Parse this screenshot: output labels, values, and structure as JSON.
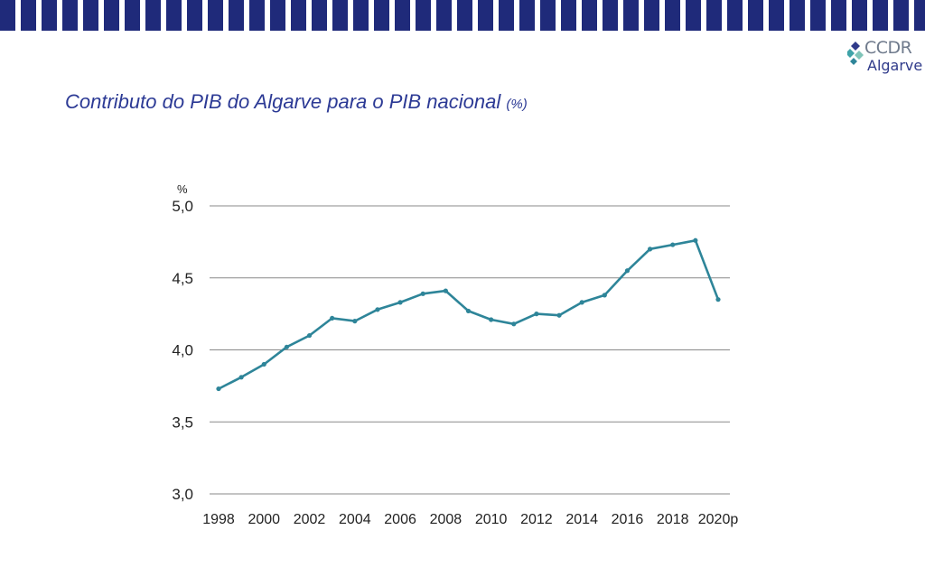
{
  "header": {
    "logo_line1": "CCDR",
    "logo_line2": "Algarve",
    "title": "Contributo do PIB do Algarve para o PIB nacional",
    "title_unit": "(%)"
  },
  "colors": {
    "band": "#1f2a7a",
    "title": "#2c3a95",
    "series": "#2e8599",
    "grid": "#8a8a8a"
  },
  "chart_data": {
    "type": "line",
    "title": "Contributo do PIB do Algarve para o PIB nacional (%)",
    "ylabel": "%",
    "xlabel": "",
    "ylim": [
      3.0,
      5.0
    ],
    "y_ticks": [
      "3,0",
      "3,5",
      "4,0",
      "4,5",
      "5,0"
    ],
    "y_tick_values": [
      3.0,
      3.5,
      4.0,
      4.5,
      5.0
    ],
    "x_tick_labels": [
      "1998",
      "2000",
      "2002",
      "2004",
      "2006",
      "2008",
      "2010",
      "2012",
      "2014",
      "2016",
      "2018",
      "2020p"
    ],
    "grid": "horizontal",
    "x": [
      1998,
      1999,
      2000,
      2001,
      2002,
      2003,
      2004,
      2005,
      2006,
      2007,
      2008,
      2009,
      2010,
      2011,
      2012,
      2013,
      2014,
      2015,
      2016,
      2017,
      2018,
      2019,
      2020
    ],
    "series": [
      {
        "values": [
          3.73,
          3.81,
          3.9,
          4.02,
          4.1,
          4.22,
          4.2,
          4.28,
          4.33,
          4.39,
          4.41,
          4.27,
          4.21,
          4.18,
          4.25,
          4.24,
          4.33,
          4.38,
          4.55,
          4.7,
          4.73,
          4.76,
          4.35
        ]
      }
    ]
  }
}
